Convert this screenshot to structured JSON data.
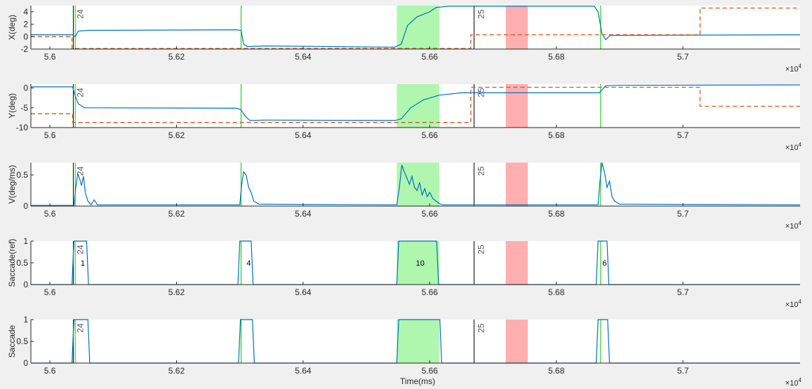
{
  "chart_data": {
    "type": "line",
    "xlabel": "Time(ms)",
    "x_multiplier": "×10",
    "x_multiplier_exp": "4",
    "xlim": [
      55970,
      57185
    ],
    "xticks": [
      5.6,
      5.62,
      5.64,
      5.66,
      5.68,
      5.7
    ],
    "trial_markers": [
      {
        "label": "24",
        "x": 56037
      },
      {
        "label": "25",
        "x": 56670
      }
    ],
    "green_regions": [
      [
        56040,
        56040
      ],
      [
        56302,
        56302
      ],
      [
        56548,
        56615
      ],
      [
        56870,
        56870
      ]
    ],
    "red_regions": [
      [
        56720,
        56755
      ]
    ],
    "saccade_labels": [
      {
        "label": "1",
        "x": 56052
      },
      {
        "label": "4",
        "x": 56314
      },
      {
        "label": "10",
        "x": 56585
      },
      {
        "label": "6",
        "x": 56876
      }
    ],
    "colors": {
      "signal": "#0072bd",
      "target": "#d95319",
      "green": "#6ef06e",
      "red": "#ff7a7a",
      "marker": "#00cc00"
    },
    "panels": [
      {
        "ylabel": "X(deg)",
        "ylim": [
          -2,
          5
        ],
        "yticks": [
          -2,
          0,
          2,
          4
        ],
        "series": [
          {
            "style": "solid",
            "points": [
              [
                55970,
                0.3
              ],
              [
                56036,
                0.3
              ],
              [
                56040,
                0.0
              ],
              [
                56045,
                0.9
              ],
              [
                56060,
                1.0
              ],
              [
                56295,
                1.1
              ],
              [
                56302,
                1.0
              ],
              [
                56306,
                -1.2
              ],
              [
                56312,
                -1.6
              ],
              [
                56340,
                -1.5
              ],
              [
                56545,
                -1.7
              ],
              [
                56555,
                -1.2
              ],
              [
                56565,
                1.8
              ],
              [
                56580,
                3.2
              ],
              [
                56600,
                4.0
              ],
              [
                56610,
                4.7
              ],
              [
                56630,
                4.9
              ],
              [
                56860,
                4.9
              ],
              [
                56866,
                4.0
              ],
              [
                56872,
                0.5
              ],
              [
                56878,
                -0.5
              ],
              [
                56885,
                0.2
              ],
              [
                57185,
                0.3
              ]
            ]
          },
          {
            "style": "dashed",
            "points": [
              [
                55970,
                0.0
              ],
              [
                56035,
                0.0
              ],
              [
                56035,
                -1.9
              ],
              [
                56665,
                -1.9
              ],
              [
                56665,
                0.3
              ],
              [
                57027,
                0.3
              ],
              [
                57027,
                4.6
              ],
              [
                57185,
                4.6
              ]
            ]
          }
        ]
      },
      {
        "ylabel": "Y(deg)",
        "ylim": [
          -10,
          1
        ],
        "yticks": [
          -10,
          -5,
          0
        ],
        "series": [
          {
            "style": "solid",
            "points": [
              [
                55970,
                0.3
              ],
              [
                56036,
                0.3
              ],
              [
                56040,
                -2.0
              ],
              [
                56045,
                -4.0
              ],
              [
                56055,
                -5.0
              ],
              [
                56080,
                -5.0
              ],
              [
                56295,
                -5.1
              ],
              [
                56302,
                -5.5
              ],
              [
                56308,
                -7.0
              ],
              [
                56316,
                -8.2
              ],
              [
                56340,
                -8.1
              ],
              [
                56545,
                -8.2
              ],
              [
                56555,
                -7.8
              ],
              [
                56570,
                -5.0
              ],
              [
                56590,
                -3.0
              ],
              [
                56615,
                -1.8
              ],
              [
                56650,
                -1.2
              ],
              [
                56868,
                -1.2
              ],
              [
                56878,
                0.6
              ],
              [
                56900,
                0.7
              ],
              [
                57185,
                0.8
              ]
            ]
          },
          {
            "style": "dashed",
            "points": [
              [
                55970,
                -6.5
              ],
              [
                56036,
                -6.5
              ],
              [
                56036,
                -8.7
              ],
              [
                56665,
                -8.7
              ],
              [
                56665,
                0.2
              ],
              [
                57027,
                0.2
              ],
              [
                57027,
                -4.6
              ],
              [
                57185,
                -4.6
              ]
            ]
          }
        ]
      },
      {
        "ylabel": "V(deg/ms)",
        "ylim": [
          0,
          0.7
        ],
        "yticks": [
          0,
          0.5
        ],
        "series": [
          {
            "style": "solid",
            "points": [
              [
                55970,
                0.01
              ],
              [
                56038,
                0.01
              ],
              [
                56041,
                0.3
              ],
              [
                56044,
                0.52
              ],
              [
                56047,
                0.44
              ],
              [
                56050,
                0.33
              ],
              [
                56053,
                0.48
              ],
              [
                56056,
                0.22
              ],
              [
                56060,
                0.08
              ],
              [
                56065,
                0.02
              ],
              [
                56070,
                0.1
              ],
              [
                56075,
                0.02
              ],
              [
                56300,
                0.02
              ],
              [
                56303,
                0.35
              ],
              [
                56306,
                0.55
              ],
              [
                56310,
                0.5
              ],
              [
                56314,
                0.3
              ],
              [
                56318,
                0.22
              ],
              [
                56322,
                0.08
              ],
              [
                56330,
                0.03
              ],
              [
                56548,
                0.02
              ],
              [
                56552,
                0.3
              ],
              [
                56556,
                0.66
              ],
              [
                56560,
                0.55
              ],
              [
                56564,
                0.45
              ],
              [
                56568,
                0.35
              ],
              [
                56572,
                0.48
              ],
              [
                56576,
                0.3
              ],
              [
                56580,
                0.25
              ],
              [
                56584,
                0.38
              ],
              [
                56588,
                0.18
              ],
              [
                56592,
                0.28
              ],
              [
                56596,
                0.15
              ],
              [
                56600,
                0.22
              ],
              [
                56605,
                0.12
              ],
              [
                56610,
                0.08
              ],
              [
                56615,
                0.04
              ],
              [
                56620,
                0.02
              ],
              [
                56866,
                0.02
              ],
              [
                56869,
                0.4
              ],
              [
                56872,
                0.7
              ],
              [
                56876,
                0.55
              ],
              [
                56880,
                0.3
              ],
              [
                56884,
                0.4
              ],
              [
                56888,
                0.15
              ],
              [
                56892,
                0.08
              ],
              [
                56900,
                0.03
              ],
              [
                57185,
                0.02
              ]
            ]
          }
        ]
      },
      {
        "ylabel": "Saccade(ref)",
        "ylim": [
          0,
          1
        ],
        "yticks": [
          0,
          0.5,
          1
        ],
        "series": [
          {
            "style": "solid",
            "points": [
              [
                55970,
                0
              ],
              [
                56035,
                0
              ],
              [
                56038,
                1
              ],
              [
                56058,
                1
              ],
              [
                56061,
                0
              ],
              [
                56297,
                0
              ],
              [
                56300,
                1
              ],
              [
                56318,
                1
              ],
              [
                56321,
                0
              ],
              [
                56548,
                0
              ],
              [
                56551,
                1
              ],
              [
                56611,
                1
              ],
              [
                56614,
                0
              ],
              [
                56863,
                0
              ],
              [
                56866,
                1
              ],
              [
                56880,
                1
              ],
              [
                56883,
                0
              ],
              [
                57185,
                0
              ]
            ]
          }
        ]
      },
      {
        "ylabel": "Saccade",
        "ylim": [
          0,
          1
        ],
        "yticks": [
          0,
          0.5,
          1
        ],
        "series": [
          {
            "style": "solid",
            "points": [
              [
                55970,
                0
              ],
              [
                56035,
                0
              ],
              [
                56038,
                1
              ],
              [
                56060,
                1
              ],
              [
                56063,
                0
              ],
              [
                56298,
                0
              ],
              [
                56301,
                1
              ],
              [
                56320,
                1
              ],
              [
                56323,
                0
              ],
              [
                56548,
                0
              ],
              [
                56551,
                1
              ],
              [
                56616,
                1
              ],
              [
                56619,
                0
              ],
              [
                56863,
                0
              ],
              [
                56866,
                1
              ],
              [
                56881,
                1
              ],
              [
                56884,
                0
              ],
              [
                57185,
                0
              ]
            ]
          }
        ]
      }
    ]
  }
}
